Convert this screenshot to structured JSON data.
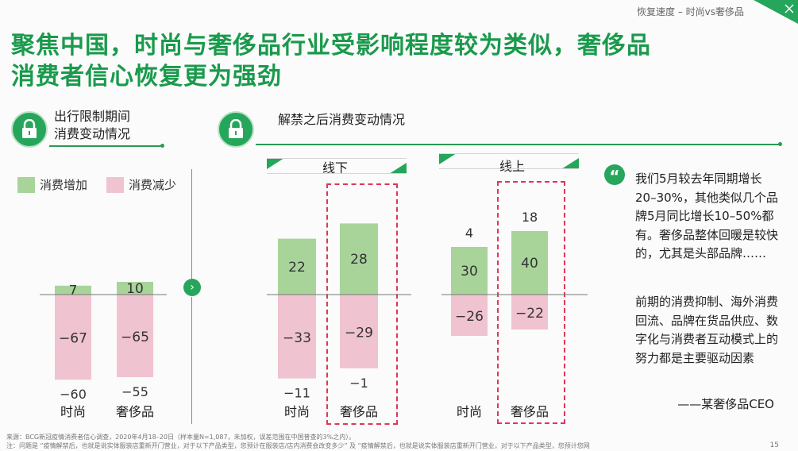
{
  "breadcrumb": "恢复速度 – 时尚vs奢侈品",
  "title_line1": "聚焦中国，时尚与奢侈品行业受影响程度较为类似，奢侈品",
  "title_line2": "消费者信心恢复更为强劲",
  "colors": {
    "increase": "#a8d49a",
    "decrease": "#f0c3d0",
    "accent": "#1a9a4c"
  },
  "icons": {
    "section": "lock-icon",
    "quote": "quote-icon",
    "next": "chevron-right-icon"
  },
  "section_left": {
    "line1": "出行限制期间",
    "line2": "消费变动情况"
  },
  "section_right": "解禁之后消费变动情况",
  "legend": {
    "increase": "消费增加",
    "decrease": "消费减少"
  },
  "tab_offline": "线下",
  "tab_online": "线上",
  "chart_data": {
    "type": "bar",
    "legend": [
      "消费增加",
      "消费减少"
    ],
    "groups": [
      {
        "name": "",
        "categories": [
          "时尚",
          "奢侈品"
        ],
        "increase": [
          7,
          10
        ],
        "decrease": [
          -67,
          -65
        ],
        "net": [
          -60,
          -55
        ]
      },
      {
        "name": "线下",
        "categories": [
          "时尚",
          "奢侈品"
        ],
        "increase": [
          22,
          28
        ],
        "decrease": [
          -33,
          -29
        ],
        "net": [
          -11,
          -1
        ]
      },
      {
        "name": "线上",
        "categories": [
          "时尚",
          "奢侈品"
        ],
        "increase": [
          30,
          40
        ],
        "decrease": [
          -26,
          -22
        ],
        "net": [
          4,
          18
        ]
      }
    ],
    "highlighted_category": "奢侈品"
  },
  "quote": {
    "p1": "我们5月较去年同期增长20–30%，其他类似几个品牌5月同比增长10–50%都有。奢侈品整体回暖是较快的，尤其是头部品牌……",
    "p2": "前期的消费抑制、海外消费回流、品牌在货品供应、数字化与消费者互动模式上的努力都是主要驱动因素",
    "author": "——某奢侈品CEO"
  },
  "footer": {
    "line1": "来源：BCG新冠疫情消费者信心调查，2020年4月18–20日（样本量N=1,087，未加权，误差范围在中国普查的3%之内）。",
    "line2": "注：问题是 “疫情解禁后，也就是说实体服装店重新开门营业，对于以下产品类型，您预计在服装店/店内消费会改变多少” 及 “疫情解禁后，也就是说实体服装店重新开门营业，对于以下产品类型，您预计您网"
  },
  "page_number": "15"
}
